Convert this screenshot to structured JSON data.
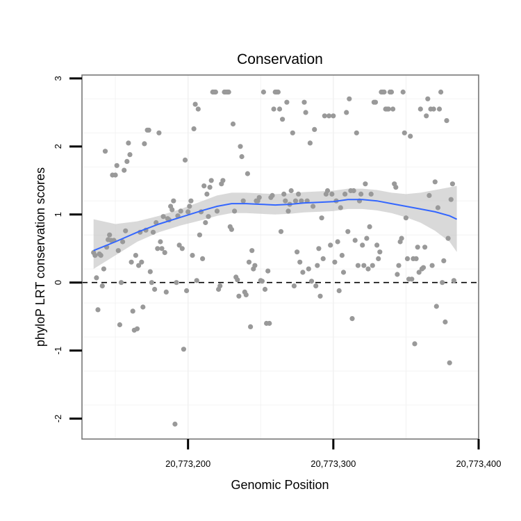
{
  "chart_data": {
    "type": "scatter",
    "title": "Conservation",
    "xlabel": "Genomic Position",
    "ylabel": "phyloP LRT conservation scores",
    "xlim": [
      20773127,
      20773400
    ],
    "ylim": [
      -2.3,
      3.05
    ],
    "x_ticks": [
      20773200,
      20773300,
      20773400
    ],
    "x_tick_labels": [
      "20,773,200",
      "20,773,300",
      "20,773,400"
    ],
    "y_ticks": [
      -2,
      -1,
      0,
      1,
      2,
      3
    ],
    "y_tick_labels": [
      "-2",
      "-1",
      "0",
      "1",
      "2",
      "3"
    ],
    "grid": true,
    "reference_line": {
      "y": 0,
      "style": "dashed"
    },
    "colors": {
      "points": "#999999",
      "smooth_line": "#3366ff",
      "confidence_band": "#cccccc",
      "frame": "#777777"
    },
    "points": [
      [
        20773135,
        0.44
      ],
      [
        20773136,
        0.4
      ],
      [
        20773137,
        0.07
      ],
      [
        20773138,
        -0.4
      ],
      [
        20773139,
        0.42
      ],
      [
        20773140,
        0.4
      ],
      [
        20773141,
        -0.05
      ],
      [
        20773142,
        0.2
      ],
      [
        20773143,
        1.93
      ],
      [
        20773144,
        0.52
      ],
      [
        20773145,
        0.63
      ],
      [
        20773146,
        0.7
      ],
      [
        20773147,
        0.62
      ],
      [
        20773148,
        1.58
      ],
      [
        20773149,
        0.62
      ],
      [
        20773150,
        1.58
      ],
      [
        20773151,
        1.72
      ],
      [
        20773152,
        0.47
      ],
      [
        20773153,
        -0.62
      ],
      [
        20773154,
        0.0
      ],
      [
        20773155,
        0.6
      ],
      [
        20773156,
        1.65
      ],
      [
        20773157,
        0.76
      ],
      [
        20773158,
        1.78
      ],
      [
        20773159,
        2.05
      ],
      [
        20773160,
        1.88
      ],
      [
        20773161,
        0.3
      ],
      [
        20773162,
        -0.42
      ],
      [
        20773163,
        -0.7
      ],
      [
        20773164,
        0.4
      ],
      [
        20773165,
        -0.68
      ],
      [
        20773166,
        0.25
      ],
      [
        20773167,
        0.74
      ],
      [
        20773168,
        0.3
      ],
      [
        20773169,
        -0.36
      ],
      [
        20773170,
        2.04
      ],
      [
        20773171,
        0.77
      ],
      [
        20773172,
        2.24
      ],
      [
        20773173,
        2.24
      ],
      [
        20773174,
        0.16
      ],
      [
        20773175,
        0.0
      ],
      [
        20773176,
        0.74
      ],
      [
        20773177,
        -0.1
      ],
      [
        20773178,
        0.88
      ],
      [
        20773179,
        0.5
      ],
      [
        20773180,
        2.2
      ],
      [
        20773181,
        0.6
      ],
      [
        20773182,
        0.5
      ],
      [
        20773183,
        0.97
      ],
      [
        20773184,
        0.44
      ],
      [
        20773185,
        -0.14
      ],
      [
        20773186,
        0.94
      ],
      [
        20773187,
        0.92
      ],
      [
        20773188,
        1.12
      ],
      [
        20773189,
        1.07
      ],
      [
        20773190,
        1.2
      ],
      [
        20773191,
        -2.08
      ],
      [
        20773192,
        0.0
      ],
      [
        20773193,
        0.98
      ],
      [
        20773194,
        0.55
      ],
      [
        20773195,
        1.05
      ],
      [
        20773196,
        0.5
      ],
      [
        20773197,
        -0.98
      ],
      [
        20773198,
        1.8
      ],
      [
        20773199,
        -0.12
      ],
      [
        20773200,
        1.04
      ],
      [
        20773201,
        1.12
      ],
      [
        20773202,
        1.2
      ],
      [
        20773203,
        0.4
      ],
      [
        20773204,
        2.26
      ],
      [
        20773205,
        2.62
      ],
      [
        20773206,
        0.03
      ],
      [
        20773207,
        2.55
      ],
      [
        20773208,
        0.7
      ],
      [
        20773209,
        1.04
      ],
      [
        20773210,
        0.35
      ],
      [
        20773211,
        1.42
      ],
      [
        20773212,
        0.88
      ],
      [
        20773213,
        1.3
      ],
      [
        20773214,
        0.97
      ],
      [
        20773215,
        1.4
      ],
      [
        20773216,
        1.5
      ],
      [
        20773217,
        2.8
      ],
      [
        20773218,
        2.8
      ],
      [
        20773219,
        2.8
      ],
      [
        20773220,
        1.05
      ],
      [
        20773221,
        -0.1
      ],
      [
        20773222,
        -0.05
      ],
      [
        20773223,
        1.45
      ],
      [
        20773224,
        1.5
      ],
      [
        20773225,
        2.8
      ],
      [
        20773226,
        2.8
      ],
      [
        20773227,
        2.8
      ],
      [
        20773228,
        2.8
      ],
      [
        20773229,
        0.82
      ],
      [
        20773230,
        0.78
      ],
      [
        20773231,
        2.33
      ],
      [
        20773232,
        1.05
      ],
      [
        20773233,
        0.08
      ],
      [
        20773234,
        0.04
      ],
      [
        20773235,
        -0.2
      ],
      [
        20773236,
        2.0
      ],
      [
        20773237,
        1.85
      ],
      [
        20773238,
        1.2
      ],
      [
        20773239,
        -0.14
      ],
      [
        20773240,
        -0.18
      ],
      [
        20773241,
        1.6
      ],
      [
        20773242,
        0.3
      ],
      [
        20773243,
        -0.65
      ],
      [
        20773244,
        0.47
      ],
      [
        20773245,
        0.2
      ],
      [
        20773246,
        0.25
      ],
      [
        20773247,
        1.2
      ],
      [
        20773248,
        1.2
      ],
      [
        20773249,
        1.25
      ],
      [
        20773250,
        0.03
      ],
      [
        20773251,
        0.02
      ],
      [
        20773252,
        2.8
      ],
      [
        20773253,
        -0.1
      ],
      [
        20773254,
        -0.6
      ],
      [
        20773255,
        0.17
      ],
      [
        20773256,
        -0.6
      ],
      [
        20773257,
        1.25
      ],
      [
        20773258,
        1.28
      ],
      [
        20773259,
        2.55
      ],
      [
        20773260,
        2.8
      ],
      [
        20773261,
        2.8
      ],
      [
        20773262,
        2.8
      ],
      [
        20773263,
        2.55
      ],
      [
        20773264,
        0.75
      ],
      [
        20773265,
        2.4
      ],
      [
        20773266,
        1.3
      ],
      [
        20773267,
        1.2
      ],
      [
        20773268,
        2.65
      ],
      [
        20773269,
        1.05
      ],
      [
        20773270,
        1.15
      ],
      [
        20773271,
        1.35
      ],
      [
        20773272,
        2.2
      ],
      [
        20773273,
        -0.05
      ],
      [
        20773274,
        1.2
      ],
      [
        20773275,
        0.45
      ],
      [
        20773276,
        1.3
      ],
      [
        20773277,
        0.3
      ],
      [
        20773278,
        1.2
      ],
      [
        20773279,
        0.15
      ],
      [
        20773280,
        2.65
      ],
      [
        20773281,
        2.5
      ],
      [
        20773282,
        1.2
      ],
      [
        20773283,
        0.2
      ],
      [
        20773284,
        2.05
      ],
      [
        20773285,
        0.02
      ],
      [
        20773286,
        1.12
      ],
      [
        20773287,
        2.25
      ],
      [
        20773288,
        -0.05
      ],
      [
        20773289,
        0.25
      ],
      [
        20773290,
        0.5
      ],
      [
        20773291,
        -0.2
      ],
      [
        20773292,
        0.95
      ],
      [
        20773293,
        0.35
      ],
      [
        20773294,
        2.45
      ],
      [
        20773295,
        1.3
      ],
      [
        20773296,
        1.35
      ],
      [
        20773297,
        2.45
      ],
      [
        20773298,
        0.55
      ],
      [
        20773299,
        1.3
      ],
      [
        20773300,
        2.45
      ],
      [
        20773301,
        0.3
      ],
      [
        20773302,
        1.2
      ],
      [
        20773303,
        0.6
      ],
      [
        20773304,
        -0.12
      ],
      [
        20773305,
        1.1
      ],
      [
        20773306,
        0.4
      ],
      [
        20773307,
        0.15
      ],
      [
        20773308,
        1.3
      ],
      [
        20773309,
        2.5
      ],
      [
        20773310,
        0.75
      ],
      [
        20773311,
        2.7
      ],
      [
        20773312,
        1.35
      ],
      [
        20773313,
        -0.53
      ],
      [
        20773314,
        1.35
      ],
      [
        20773315,
        0.62
      ],
      [
        20773316,
        2.2
      ],
      [
        20773317,
        0.25
      ],
      [
        20773318,
        1.2
      ],
      [
        20773319,
        1.3
      ],
      [
        20773320,
        0.55
      ],
      [
        20773321,
        0.25
      ],
      [
        20773322,
        1.45
      ],
      [
        20773323,
        0.65
      ],
      [
        20773324,
        0.2
      ],
      [
        20773325,
        0.82
      ],
      [
        20773326,
        1.3
      ],
      [
        20773327,
        0.25
      ],
      [
        20773328,
        2.65
      ],
      [
        20773329,
        2.65
      ],
      [
        20773330,
        0.55
      ],
      [
        20773331,
        0.35
      ],
      [
        20773332,
        0.45
      ],
      [
        20773333,
        2.8
      ],
      [
        20773334,
        2.8
      ],
      [
        20773335,
        2.8
      ],
      [
        20773336,
        2.55
      ],
      [
        20773337,
        2.55
      ],
      [
        20773338,
        2.55
      ],
      [
        20773339,
        2.8
      ],
      [
        20773340,
        2.8
      ],
      [
        20773341,
        2.55
      ],
      [
        20773342,
        1.45
      ],
      [
        20773343,
        1.4
      ],
      [
        20773344,
        0.12
      ],
      [
        20773345,
        0.25
      ],
      [
        20773346,
        0.6
      ],
      [
        20773347,
        0.65
      ],
      [
        20773348,
        2.8
      ],
      [
        20773349,
        2.2
      ],
      [
        20773350,
        0.95
      ],
      [
        20773351,
        0.35
      ],
      [
        20773352,
        0.05
      ],
      [
        20773353,
        2.15
      ],
      [
        20773354,
        0.05
      ],
      [
        20773355,
        0.35
      ],
      [
        20773356,
        -0.9
      ],
      [
        20773357,
        0.35
      ],
      [
        20773358,
        0.52
      ],
      [
        20773359,
        0.15
      ],
      [
        20773360,
        2.55
      ],
      [
        20773361,
        0.2
      ],
      [
        20773362,
        0.22
      ],
      [
        20773363,
        0.52
      ],
      [
        20773364,
        2.45
      ],
      [
        20773365,
        2.7
      ],
      [
        20773366,
        1.28
      ],
      [
        20773367,
        2.55
      ],
      [
        20773368,
        0.25
      ],
      [
        20773369,
        2.55
      ],
      [
        20773370,
        1.48
      ],
      [
        20773371,
        -0.35
      ],
      [
        20773372,
        1.1
      ],
      [
        20773373,
        2.55
      ],
      [
        20773374,
        2.8
      ],
      [
        20773375,
        0.0
      ],
      [
        20773376,
        0.32
      ],
      [
        20773377,
        -0.58
      ],
      [
        20773378,
        2.38
      ],
      [
        20773379,
        0.65
      ],
      [
        20773380,
        -1.18
      ],
      [
        20773381,
        1.22
      ],
      [
        20773382,
        1.45
      ],
      [
        20773383,
        0.03
      ]
    ],
    "smooth": {
      "x": [
        20773135,
        20773150,
        20773165,
        20773180,
        20773195,
        20773210,
        20773220,
        20773230,
        20773240,
        20773250,
        20773260,
        20773270,
        20773280,
        20773290,
        20773300,
        20773310,
        20773320,
        20773330,
        20773340,
        20773350,
        20773360,
        20773370,
        20773380,
        20773385
      ],
      "y": [
        0.47,
        0.6,
        0.74,
        0.86,
        0.96,
        1.06,
        1.12,
        1.16,
        1.16,
        1.15,
        1.14,
        1.15,
        1.17,
        1.18,
        1.19,
        1.22,
        1.22,
        1.2,
        1.16,
        1.12,
        1.08,
        1.04,
        0.98,
        0.93
      ],
      "lower": [
        0.2,
        0.4,
        0.6,
        0.74,
        0.84,
        0.92,
        0.98,
        1.02,
        1.02,
        1.01,
        1.0,
        1.01,
        1.03,
        1.04,
        1.05,
        1.08,
        1.08,
        1.06,
        1.02,
        0.96,
        0.88,
        0.76,
        0.6,
        0.45
      ],
      "upper": [
        0.93,
        0.86,
        0.9,
        0.98,
        1.08,
        1.2,
        1.28,
        1.32,
        1.32,
        1.31,
        1.3,
        1.31,
        1.33,
        1.34,
        1.35,
        1.38,
        1.38,
        1.36,
        1.32,
        1.3,
        1.32,
        1.36,
        1.4,
        1.42
      ]
    }
  }
}
